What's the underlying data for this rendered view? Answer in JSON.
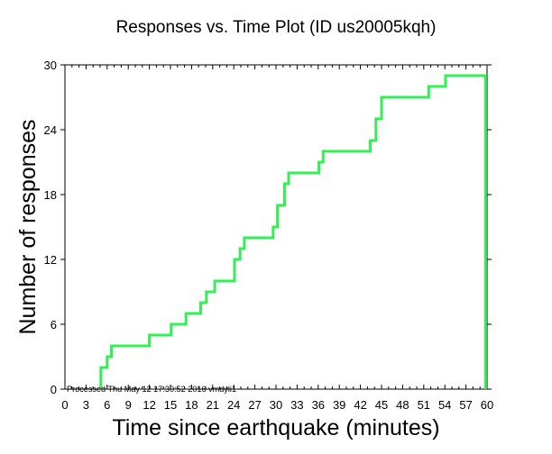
{
  "chart_data": {
    "type": "line",
    "title": "Responses vs. Time Plot (ID us20005kqh)",
    "xlabel": "Time since earthquake (minutes)",
    "ylabel": "Number of responses",
    "xlim": [
      0,
      60
    ],
    "ylim": [
      0,
      30
    ],
    "x_ticks": [
      0,
      3,
      6,
      9,
      12,
      15,
      18,
      21,
      24,
      27,
      30,
      33,
      36,
      39,
      42,
      45,
      48,
      51,
      54,
      57,
      60
    ],
    "x_tick_labels": [
      "0",
      "3",
      "6",
      "9",
      "12",
      "15",
      "18",
      "21",
      "24",
      "27",
      "30",
      "33",
      "36",
      "39",
      "42",
      "45",
      "48",
      "51",
      "54",
      "57",
      "60"
    ],
    "y_ticks": [
      0,
      6,
      12,
      18,
      24,
      30
    ],
    "y_tick_labels": [
      "0",
      "6",
      "12",
      "18",
      "24",
      "30"
    ],
    "grid": false,
    "line_color": "#33ee55",
    "annotation": "Processed Thu May 12 17:30:52 2016 vmdyli1",
    "series": [
      {
        "step": "post",
        "x": [
          5.1,
          5.1,
          6.0,
          6.0,
          6.6,
          6.6,
          7.3,
          7.3,
          12.0,
          12.0,
          15.1,
          15.1,
          16.6,
          16.6,
          17.2,
          17.2,
          19.3,
          19.3,
          20.1,
          20.1,
          21.3,
          21.3,
          24.1,
          24.1,
          24.9,
          24.9,
          25.5,
          25.5,
          27.4,
          27.4,
          29.6,
          29.6,
          30.2,
          30.2,
          31.2,
          31.2,
          31.8,
          31.8,
          36.1,
          36.1,
          36.7,
          36.7,
          37.8,
          37.8,
          43.4,
          43.4,
          44.2,
          44.2,
          45.0,
          45.0,
          48.6,
          48.6,
          51.7,
          51.7,
          54.1,
          54.1,
          59.8,
          59.8
        ],
        "y": [
          0,
          2,
          2,
          3,
          3,
          4,
          4,
          4,
          4,
          5,
          5,
          6,
          6,
          6,
          6,
          7,
          7,
          8,
          8,
          9,
          9,
          10,
          10,
          12,
          12,
          13,
          13,
          14,
          14,
          14,
          14,
          15,
          15,
          17,
          17,
          19,
          19,
          20,
          20,
          21,
          21,
          22,
          22,
          22,
          22,
          23,
          23,
          25,
          25,
          27,
          27,
          27,
          27,
          28,
          28,
          29,
          29,
          0
        ]
      }
    ]
  }
}
